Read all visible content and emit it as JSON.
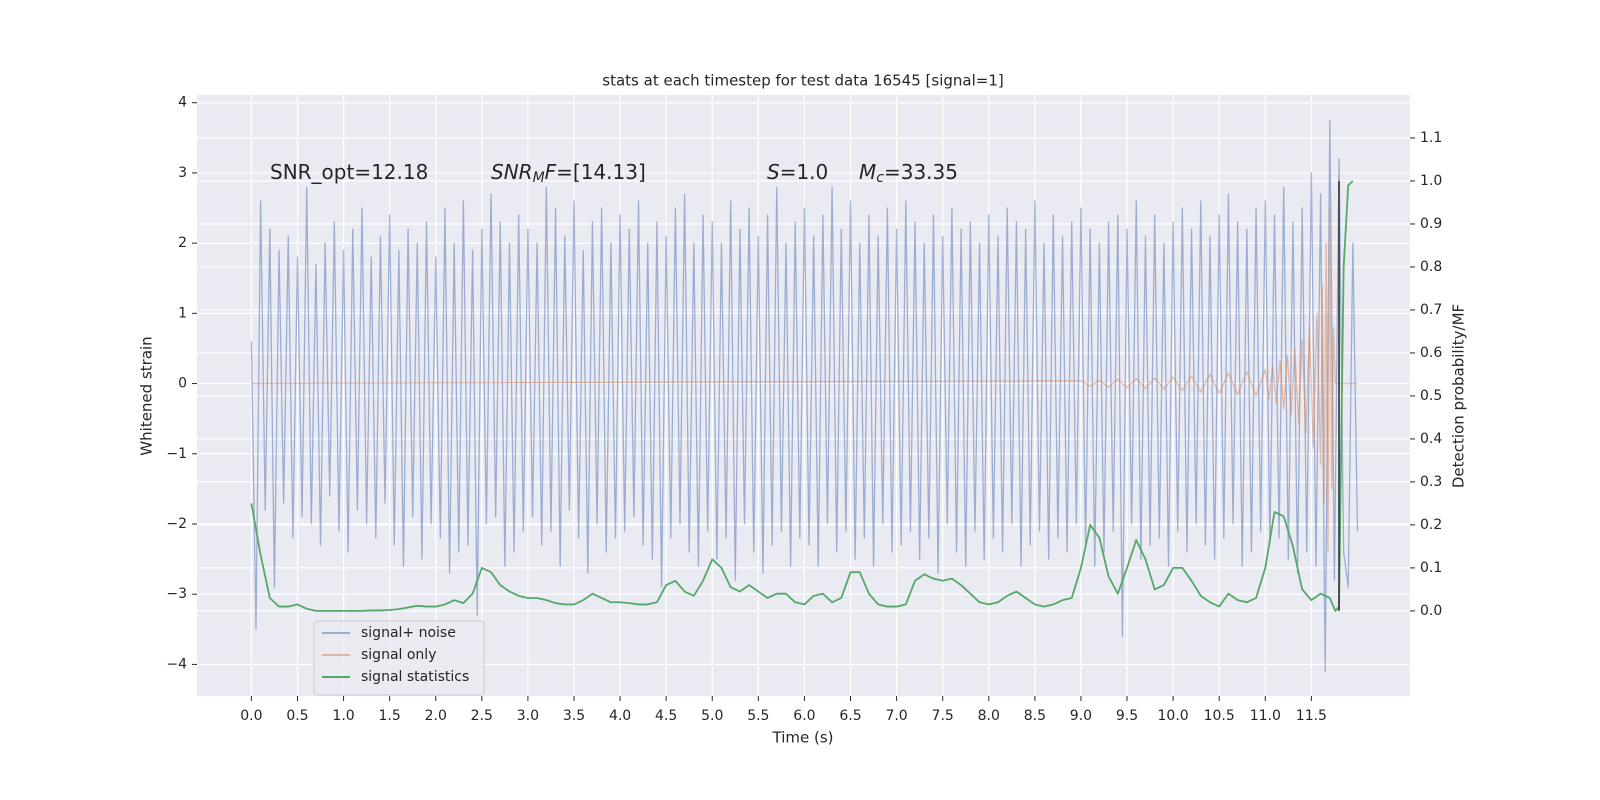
{
  "chart_data": {
    "type": "line",
    "title": "stats at each timestep for test data 16545 [signal=1]",
    "xlabel": "Time (s)",
    "ylabel": "Whitened strain",
    "y2label": "Detection probability/MF",
    "annotations": [
      [
        {
          "text": "SNR_opt=12.18"
        }
      ],
      [
        {
          "text": "SNR",
          "italic": true
        },
        {
          "text": "M",
          "italic": true,
          "sub": true
        },
        {
          "text": "F",
          "italic": true
        },
        {
          "text": "=[14.13]"
        }
      ],
      [
        {
          "text": "S",
          "italic": true
        },
        {
          "text": "=1.0"
        }
      ],
      [
        {
          "text": "M",
          "italic": true
        },
        {
          "text": "c",
          "italic": true,
          "sub": true
        },
        {
          "text": "=33.35"
        }
      ]
    ],
    "xlim": [
      -0.59,
      12.57
    ],
    "xticks": [
      {
        "value": 0,
        "label": "0.0"
      },
      0.5,
      {
        "value": 1,
        "label": "1.0"
      },
      1.5,
      {
        "value": 2,
        "label": "2.0"
      },
      2.5,
      {
        "value": 3,
        "label": "3.0"
      },
      3.5,
      {
        "value": 4,
        "label": "4.0"
      },
      4.5,
      {
        "value": 5,
        "label": "5.0"
      },
      5.5,
      {
        "value": 6,
        "label": "6.0"
      },
      6.5,
      {
        "value": 7,
        "label": "7.0"
      },
      7.5,
      {
        "value": 8,
        "label": "8.0"
      },
      8.5,
      {
        "value": 9,
        "label": "9.0"
      },
      9.5,
      {
        "value": 10,
        "label": "10.0"
      },
      10.5,
      {
        "value": 11,
        "label": "11.0"
      },
      11.5
    ],
    "ylim": [
      -4.45,
      4.11
    ],
    "yticks": [
      {
        "value": -4,
        "label": "−4"
      },
      {
        "value": -3,
        "label": "−3"
      },
      {
        "value": -2,
        "label": "−2"
      },
      {
        "value": -1,
        "label": "−1"
      },
      0,
      1,
      2,
      3,
      4
    ],
    "y2lim": [
      -0.198,
      1.2
    ],
    "y2ticks": [
      {
        "value": 0,
        "label": "0.0"
      },
      0.1,
      0.2,
      0.3,
      0.4,
      0.5,
      0.6,
      0.7,
      0.8,
      0.9,
      {
        "value": 1,
        "label": "1.0"
      },
      1.1
    ],
    "grid": true,
    "legend": "lower left",
    "series": [
      {
        "name": "signal+ noise",
        "color": "#4c72b0",
        "alpha": 0.5,
        "x": [
          0,
          0.05,
          0.1,
          0.15,
          0.2,
          0.25,
          0.3,
          0.35,
          0.4,
          0.45,
          0.5,
          0.55,
          0.6,
          0.65,
          0.7,
          0.75,
          0.8,
          0.85,
          0.9,
          0.95,
          1,
          1.05,
          1.1,
          1.15,
          1.2,
          1.25,
          1.3,
          1.35,
          1.4,
          1.45,
          1.5,
          1.55,
          1.6,
          1.65,
          1.7,
          1.75,
          1.8,
          1.85,
          1.9,
          1.95,
          2,
          2.05,
          2.1,
          2.15,
          2.2,
          2.25,
          2.3,
          2.35,
          2.4,
          2.45,
          2.5,
          2.55,
          2.6,
          2.65,
          2.7,
          2.75,
          2.8,
          2.85,
          2.9,
          2.95,
          3,
          3.05,
          3.1,
          3.15,
          3.2,
          3.25,
          3.3,
          3.35,
          3.4,
          3.45,
          3.5,
          3.55,
          3.6,
          3.65,
          3.7,
          3.75,
          3.8,
          3.85,
          3.9,
          3.95,
          4,
          4.05,
          4.1,
          4.15,
          4.2,
          4.25,
          4.3,
          4.35,
          4.4,
          4.45,
          4.5,
          4.55,
          4.6,
          4.65,
          4.7,
          4.75,
          4.8,
          4.85,
          4.9,
          4.95,
          5,
          5.05,
          5.1,
          5.15,
          5.2,
          5.25,
          5.3,
          5.35,
          5.4,
          5.45,
          5.5,
          5.55,
          5.6,
          5.65,
          5.7,
          5.75,
          5.8,
          5.85,
          5.9,
          5.95,
          6,
          6.05,
          6.1,
          6.15,
          6.2,
          6.25,
          6.3,
          6.35,
          6.4,
          6.45,
          6.5,
          6.55,
          6.6,
          6.65,
          6.7,
          6.75,
          6.8,
          6.85,
          6.9,
          6.95,
          7,
          7.05,
          7.1,
          7.15,
          7.2,
          7.25,
          7.3,
          7.35,
          7.4,
          7.45,
          7.5,
          7.55,
          7.6,
          7.65,
          7.7,
          7.75,
          7.8,
          7.85,
          7.9,
          7.95,
          8,
          8.05,
          8.1,
          8.15,
          8.2,
          8.25,
          8.3,
          8.35,
          8.4,
          8.45,
          8.5,
          8.55,
          8.6,
          8.65,
          8.7,
          8.75,
          8.8,
          8.85,
          8.9,
          8.95,
          9,
          9.05,
          9.1,
          9.15,
          9.2,
          9.25,
          9.3,
          9.35,
          9.4,
          9.45,
          9.5,
          9.55,
          9.6,
          9.65,
          9.7,
          9.75,
          9.8,
          9.85,
          9.9,
          9.95,
          10,
          10.05,
          10.1,
          10.15,
          10.2,
          10.25,
          10.3,
          10.35,
          10.4,
          10.45,
          10.5,
          10.55,
          10.6,
          10.65,
          10.7,
          10.75,
          10.8,
          10.85,
          10.9,
          10.95,
          11,
          11.05,
          11.1,
          11.15,
          11.2,
          11.25,
          11.3,
          11.35,
          11.4,
          11.45,
          11.5,
          11.55,
          11.6,
          11.65,
          11.7,
          11.75,
          11.8,
          11.85,
          11.9,
          11.95,
          12
        ],
        "values": [
          0.6,
          -3.5,
          2.6,
          -1.8,
          2.2,
          -2.9,
          1.9,
          -1.7,
          2.1,
          -2.2,
          1.8,
          -1.9,
          2.8,
          -2.0,
          1.7,
          -2.3,
          2.0,
          -1.6,
          2.3,
          -2.1,
          1.9,
          -2.4,
          2.2,
          -1.8,
          2.5,
          -2.0,
          1.8,
          -2.2,
          2.1,
          -1.7,
          2.4,
          -2.3,
          1.9,
          -2.6,
          2.2,
          -1.9,
          2.0,
          -2.5,
          2.3,
          -2.0,
          1.8,
          -2.2,
          2.5,
          -2.7,
          2.0,
          -2.4,
          2.6,
          -2.3,
          1.9,
          -3.3,
          2.2,
          -2.0,
          2.7,
          -1.9,
          2.3,
          -2.6,
          2.0,
          -2.4,
          2.4,
          -2.1,
          2.2,
          -1.9,
          2.0,
          -2.3,
          2.8,
          -2.1,
          2.5,
          -2.6,
          2.1,
          -1.8,
          2.6,
          -2.2,
          1.9,
          -2.7,
          2.3,
          -2.0,
          2.5,
          -2.4,
          2.0,
          -2.2,
          2.4,
          -2.1,
          2.2,
          -1.9,
          2.6,
          -2.3,
          2.0,
          -2.5,
          2.3,
          -2.9,
          2.1,
          -2.2,
          2.5,
          -2.0,
          2.7,
          -2.4,
          2.0,
          -2.6,
          2.4,
          -2.1,
          2.3,
          -2.5,
          2.0,
          -2.2,
          2.6,
          -2.8,
          2.2,
          -2.0,
          2.5,
          -2.4,
          2.1,
          -2.7,
          2.4,
          -2.3,
          2.8,
          -2.1,
          2.0,
          -2.6,
          2.3,
          -2.2,
          2.5,
          -2.3,
          2.1,
          -2.6,
          2.4,
          -2.0,
          2.8,
          -2.4,
          2.2,
          -2.1,
          2.6,
          -2.5,
          2.0,
          -2.2,
          2.4,
          -2.6,
          2.1,
          -2.0,
          2.5,
          -2.4,
          2.2,
          -2.3,
          2.6,
          -2.1,
          2.3,
          -2.5,
          2.0,
          -2.2,
          2.4,
          -2.7,
          2.1,
          -2.0,
          2.5,
          -2.4,
          2.2,
          -2.6,
          2.3,
          -2.1,
          2.0,
          -2.5,
          2.4,
          -2.2,
          2.1,
          -2.4,
          2.5,
          -2.0,
          2.3,
          -2.6,
          2.2,
          -2.3,
          2.6,
          -2.1,
          2.0,
          -2.5,
          2.4,
          -2.2,
          2.1,
          -2.4,
          2.3,
          -2.0,
          2.5,
          -2.3,
          2.2,
          -2.6,
          2.0,
          -2.4,
          2.3,
          -2.1,
          2.4,
          -3.6,
          2.2,
          -2.0,
          2.6,
          -2.5,
          2.1,
          -2.3,
          2.4,
          -2.2,
          2.0,
          -2.6,
          2.3,
          -2.1,
          2.5,
          -2.4,
          2.2,
          -2.0,
          2.6,
          -2.3,
          2.1,
          -2.5,
          2.4,
          -2.2,
          2.7,
          -2.0,
          2.3,
          -2.6,
          2.2,
          -2.4,
          2.5,
          -2.1,
          2.6,
          -2.3,
          2.4,
          -2.2,
          2.8,
          -2.5,
          2.3,
          -2.7,
          2.5,
          -2.4,
          3.0,
          -2.6,
          2.7,
          -4.1,
          3.75,
          -2.8,
          3.2,
          -2.4,
          -2.9,
          2.0,
          -2.1
        ]
      },
      {
        "name": "signal only",
        "color": "#dd8452",
        "alpha": 0.5,
        "x": [
          0,
          9,
          9.1,
          9.2,
          9.3,
          9.4,
          9.5,
          9.6,
          9.7,
          9.8,
          9.9,
          10,
          10.1,
          10.2,
          10.3,
          10.4,
          10.5,
          10.6,
          10.7,
          10.8,
          10.9,
          11,
          11.04,
          11.08,
          11.12,
          11.16,
          11.2,
          11.24,
          11.28,
          11.32,
          11.36,
          11.4,
          11.44,
          11.48,
          11.52,
          11.56,
          11.6,
          11.62,
          11.64,
          11.66,
          11.68,
          11.7,
          11.72,
          11.74,
          11.76,
          12
        ],
        "values": [
          0,
          0.04,
          -0.04,
          0.05,
          -0.05,
          0.06,
          -0.06,
          0.07,
          -0.07,
          0.08,
          -0.08,
          0.09,
          -0.1,
          0.11,
          -0.12,
          0.13,
          -0.14,
          0.15,
          -0.16,
          0.17,
          -0.18,
          0.2,
          -0.22,
          0.25,
          -0.28,
          0.32,
          -0.36,
          0.4,
          -0.45,
          0.5,
          -0.56,
          0.63,
          -0.7,
          0.8,
          -0.9,
          1.0,
          -1.15,
          1.4,
          -1.7,
          2.0,
          -2.4,
          2.5,
          -1.5,
          0.8,
          0,
          0
        ]
      },
      {
        "name": "signal statistics",
        "color": "#55a868",
        "alpha": 1,
        "axis": "y2",
        "x": [
          0,
          0.1,
          0.2,
          0.3,
          0.4,
          0.5,
          0.6,
          0.7,
          0.8,
          0.9,
          1,
          1.1,
          1.2,
          1.3,
          1.4,
          1.5,
          1.6,
          1.7,
          1.8,
          1.9,
          2,
          2.1,
          2.2,
          2.3,
          2.4,
          2.5,
          2.6,
          2.7,
          2.8,
          2.9,
          3,
          3.1,
          3.2,
          3.3,
          3.4,
          3.5,
          3.6,
          3.7,
          3.8,
          3.9,
          4,
          4.1,
          4.2,
          4.3,
          4.4,
          4.5,
          4.6,
          4.7,
          4.8,
          4.9,
          5,
          5.1,
          5.2,
          5.3,
          5.4,
          5.5,
          5.6,
          5.7,
          5.8,
          5.9,
          6,
          6.1,
          6.2,
          6.3,
          6.4,
          6.5,
          6.6,
          6.7,
          6.8,
          6.9,
          7,
          7.1,
          7.2,
          7.3,
          7.4,
          7.5,
          7.6,
          7.7,
          7.8,
          7.9,
          8,
          8.1,
          8.2,
          8.3,
          8.4,
          8.5,
          8.6,
          8.7,
          8.8,
          8.9,
          9,
          9.1,
          9.2,
          9.3,
          9.4,
          9.5,
          9.6,
          9.7,
          9.8,
          9.9,
          10,
          10.1,
          10.2,
          10.3,
          10.4,
          10.5,
          10.6,
          10.7,
          10.8,
          10.9,
          11,
          11.1,
          11.2,
          11.3,
          11.4,
          11.5,
          11.6,
          11.7,
          11.76,
          11.8,
          11.85,
          11.9,
          11.95
        ],
        "values": [
          0.25,
          0.13,
          0.03,
          0.01,
          0.01,
          0.015,
          0.005,
          0,
          0,
          0,
          0,
          0,
          0,
          0.001,
          0.001,
          0.002,
          0.004,
          0.008,
          0.012,
          0.01,
          0.01,
          0.015,
          0.025,
          0.018,
          0.04,
          0.1,
          0.09,
          0.06,
          0.045,
          0.035,
          0.03,
          0.03,
          0.025,
          0.018,
          0.015,
          0.015,
          0.025,
          0.04,
          0.03,
          0.02,
          0.02,
          0.018,
          0.015,
          0.015,
          0.02,
          0.06,
          0.07,
          0.045,
          0.035,
          0.07,
          0.12,
          0.1,
          0.055,
          0.045,
          0.06,
          0.045,
          0.03,
          0.04,
          0.04,
          0.02,
          0.015,
          0.035,
          0.04,
          0.02,
          0.03,
          0.09,
          0.09,
          0.04,
          0.015,
          0.01,
          0.01,
          0.015,
          0.07,
          0.085,
          0.075,
          0.07,
          0.075,
          0.06,
          0.04,
          0.02,
          0.015,
          0.02,
          0.035,
          0.045,
          0.03,
          0.015,
          0.01,
          0.015,
          0.025,
          0.03,
          0.1,
          0.2,
          0.17,
          0.08,
          0.04,
          0.1,
          0.165,
          0.12,
          0.05,
          0.06,
          0.1,
          0.1,
          0.07,
          0.035,
          0.02,
          0.01,
          0.04,
          0.025,
          0.02,
          0.03,
          0.1,
          0.23,
          0.22,
          0.15,
          0.05,
          0.025,
          0.04,
          0.03,
          0,
          0.01,
          0.8,
          0.99,
          1.0
        ]
      }
    ],
    "vline": {
      "x": 11.8,
      "from": 0,
      "to": 1,
      "axis": "y2",
      "color": "#444444"
    }
  }
}
